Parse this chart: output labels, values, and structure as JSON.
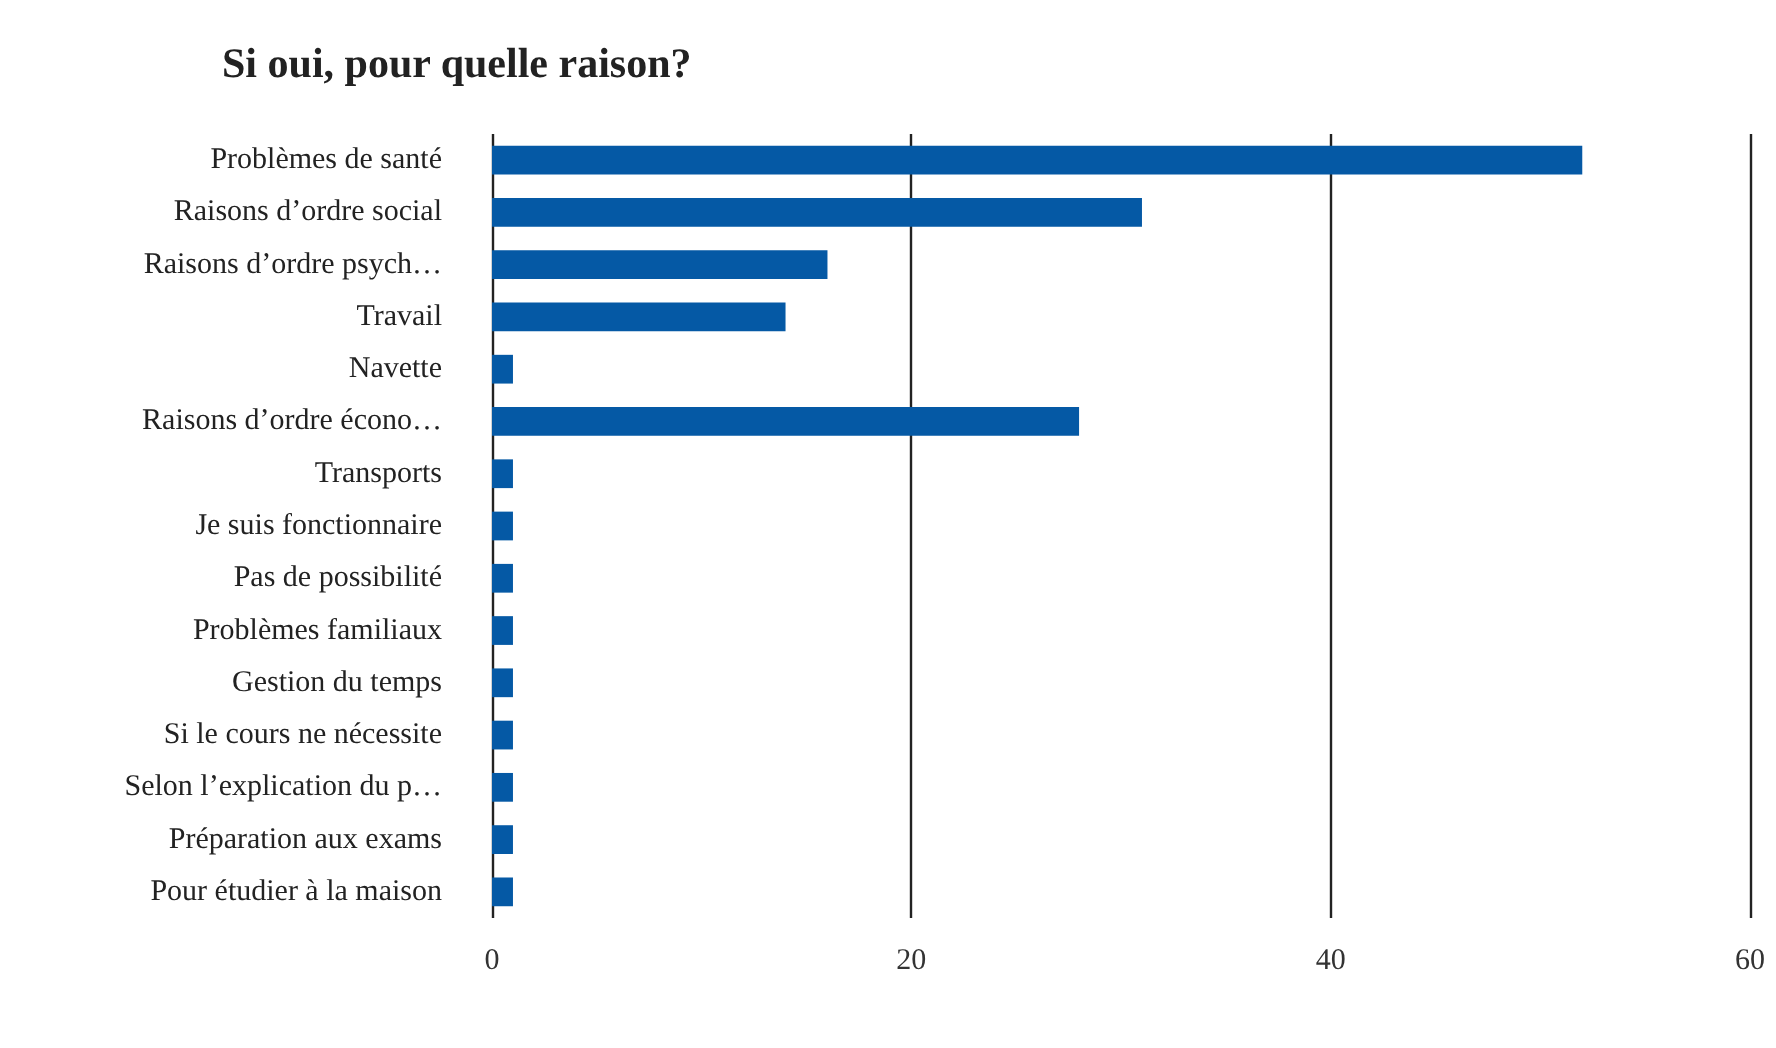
{
  "chart_data": {
    "type": "bar",
    "orientation": "horizontal",
    "title": "Si oui, pour quelle raison?",
    "categories": [
      "Problèmes de santé",
      "Raisons d’ordre social",
      "Raisons d’ordre psych…",
      "Travail",
      "Navette",
      "Raisons d’ordre écono…",
      "Transports",
      "Je suis fonctionnaire",
      "Pas de possibilité",
      "Problèmes familiaux",
      "Gestion du temps",
      "Si le cours ne nécessite",
      "Selon l’explication du p…",
      "Préparation aux exams",
      "Pour étudier à la maison"
    ],
    "values": [
      52,
      31,
      16,
      14,
      1,
      28,
      1,
      1,
      1,
      1,
      1,
      1,
      1,
      1,
      1
    ],
    "color": "#0559a5",
    "xlim": [
      0,
      60
    ],
    "xticks": [
      0,
      20,
      40,
      60
    ],
    "grid": "x"
  }
}
